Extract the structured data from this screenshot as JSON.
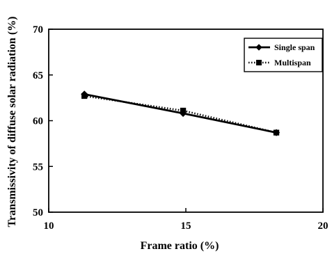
{
  "chart_data": {
    "type": "line",
    "xlabel": "Frame ratio (%)",
    "ylabel": "Transmissivity of diffuse solar radiation (%)",
    "xlim": [
      10,
      20
    ],
    "ylim": [
      50,
      70
    ],
    "x_ticks": [
      "10",
      "15",
      "20"
    ],
    "y_ticks": [
      "50",
      "55",
      "60",
      "65",
      "70"
    ],
    "grid": false,
    "legend_position": "top-right",
    "series": [
      {
        "name": "Single span",
        "marker": "diamond",
        "line_style": "solid",
        "color": "#000000",
        "x": [
          11.3,
          14.9,
          18.3
        ],
        "y": [
          62.9,
          60.8,
          58.7
        ]
      },
      {
        "name": "Multispan",
        "marker": "square",
        "line_style": "dotted",
        "color": "#000000",
        "x": [
          11.3,
          14.9,
          18.3
        ],
        "y": [
          62.7,
          61.1,
          58.7
        ]
      }
    ]
  }
}
